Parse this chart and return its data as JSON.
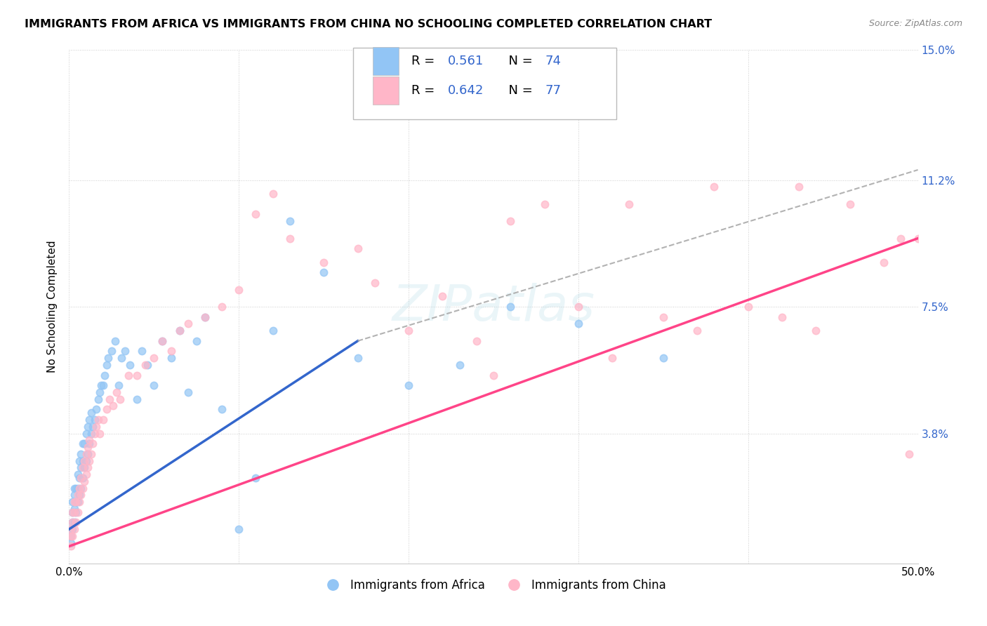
{
  "title": "IMMIGRANTS FROM AFRICA VS IMMIGRANTS FROM CHINA NO SCHOOLING COMPLETED CORRELATION CHART",
  "source": "Source: ZipAtlas.com",
  "ylabel": "No Schooling Completed",
  "xlim": [
    0.0,
    0.5
  ],
  "ylim": [
    0.0,
    0.15
  ],
  "africa_R": "0.561",
  "africa_N": "74",
  "china_R": "0.642",
  "china_N": "77",
  "africa_color": "#92C5F5",
  "china_color": "#FFB6C8",
  "africa_line_color": "#3366CC",
  "china_line_color": "#FF4488",
  "africa_scatter_x": [
    0.001,
    0.001,
    0.001,
    0.002,
    0.002,
    0.002,
    0.002,
    0.003,
    0.003,
    0.003,
    0.003,
    0.004,
    0.004,
    0.004,
    0.005,
    0.005,
    0.005,
    0.006,
    0.006,
    0.006,
    0.007,
    0.007,
    0.007,
    0.008,
    0.008,
    0.008,
    0.009,
    0.009,
    0.01,
    0.01,
    0.011,
    0.011,
    0.012,
    0.012,
    0.013,
    0.013,
    0.014,
    0.015,
    0.016,
    0.017,
    0.018,
    0.019,
    0.02,
    0.021,
    0.022,
    0.023,
    0.025,
    0.027,
    0.029,
    0.031,
    0.033,
    0.036,
    0.04,
    0.043,
    0.046,
    0.05,
    0.055,
    0.06,
    0.065,
    0.07,
    0.075,
    0.08,
    0.09,
    0.1,
    0.11,
    0.12,
    0.13,
    0.15,
    0.17,
    0.2,
    0.23,
    0.26,
    0.3,
    0.35
  ],
  "africa_scatter_y": [
    0.006,
    0.008,
    0.01,
    0.01,
    0.012,
    0.015,
    0.018,
    0.012,
    0.016,
    0.02,
    0.022,
    0.015,
    0.018,
    0.022,
    0.018,
    0.022,
    0.026,
    0.02,
    0.025,
    0.03,
    0.022,
    0.028,
    0.032,
    0.025,
    0.03,
    0.035,
    0.028,
    0.035,
    0.03,
    0.038,
    0.032,
    0.04,
    0.035,
    0.042,
    0.038,
    0.044,
    0.04,
    0.042,
    0.045,
    0.048,
    0.05,
    0.052,
    0.052,
    0.055,
    0.058,
    0.06,
    0.062,
    0.065,
    0.052,
    0.06,
    0.062,
    0.058,
    0.048,
    0.062,
    0.058,
    0.052,
    0.065,
    0.06,
    0.068,
    0.05,
    0.065,
    0.072,
    0.045,
    0.01,
    0.025,
    0.068,
    0.1,
    0.085,
    0.06,
    0.052,
    0.058,
    0.075,
    0.07,
    0.06
  ],
  "china_scatter_x": [
    0.001,
    0.001,
    0.001,
    0.002,
    0.002,
    0.002,
    0.003,
    0.003,
    0.003,
    0.004,
    0.004,
    0.005,
    0.005,
    0.006,
    0.006,
    0.007,
    0.007,
    0.008,
    0.008,
    0.009,
    0.009,
    0.01,
    0.01,
    0.011,
    0.011,
    0.012,
    0.012,
    0.013,
    0.014,
    0.015,
    0.016,
    0.017,
    0.018,
    0.02,
    0.022,
    0.024,
    0.026,
    0.028,
    0.03,
    0.035,
    0.04,
    0.045,
    0.05,
    0.055,
    0.06,
    0.065,
    0.07,
    0.08,
    0.09,
    0.1,
    0.11,
    0.12,
    0.13,
    0.15,
    0.17,
    0.18,
    0.2,
    0.22,
    0.24,
    0.26,
    0.28,
    0.3,
    0.32,
    0.35,
    0.37,
    0.4,
    0.42,
    0.44,
    0.46,
    0.48,
    0.49,
    0.495,
    0.5,
    0.38,
    0.43,
    0.25,
    0.33
  ],
  "china_scatter_y": [
    0.005,
    0.008,
    0.01,
    0.008,
    0.012,
    0.015,
    0.01,
    0.015,
    0.018,
    0.012,
    0.018,
    0.015,
    0.02,
    0.018,
    0.022,
    0.02,
    0.025,
    0.022,
    0.028,
    0.024,
    0.03,
    0.026,
    0.032,
    0.028,
    0.034,
    0.03,
    0.036,
    0.032,
    0.035,
    0.038,
    0.04,
    0.042,
    0.038,
    0.042,
    0.045,
    0.048,
    0.046,
    0.05,
    0.048,
    0.055,
    0.055,
    0.058,
    0.06,
    0.065,
    0.062,
    0.068,
    0.07,
    0.072,
    0.075,
    0.08,
    0.102,
    0.108,
    0.095,
    0.088,
    0.092,
    0.082,
    0.068,
    0.078,
    0.065,
    0.1,
    0.105,
    0.075,
    0.06,
    0.072,
    0.068,
    0.075,
    0.072,
    0.068,
    0.105,
    0.088,
    0.095,
    0.032,
    0.095,
    0.11,
    0.11,
    0.055,
    0.105
  ],
  "africa_line_x": [
    0.0,
    0.17
  ],
  "africa_line_y_start": 0.01,
  "africa_line_y_end": 0.065,
  "china_line_x": [
    0.0,
    0.5
  ],
  "china_line_y_start": 0.005,
  "china_line_y_end": 0.095,
  "dashed_line_x": [
    0.17,
    0.5
  ],
  "dashed_line_y_start": 0.065,
  "dashed_line_y_end": 0.115
}
